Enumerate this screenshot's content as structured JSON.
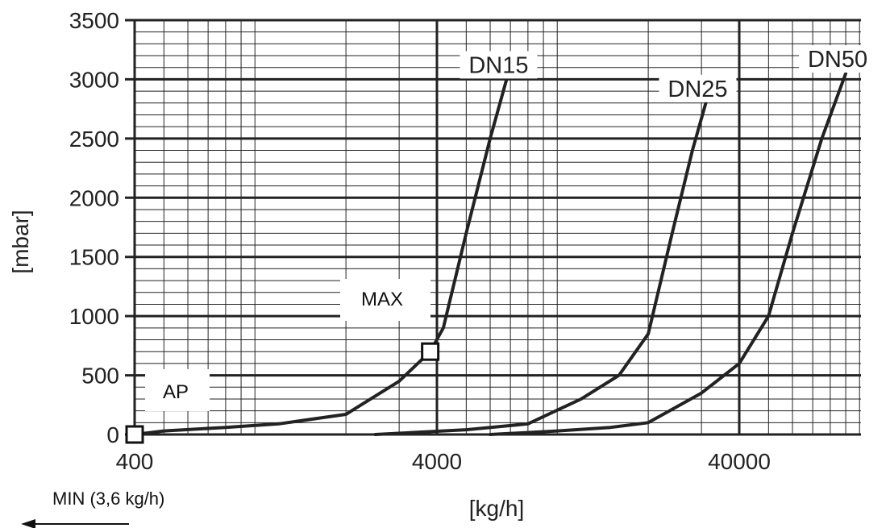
{
  "chart_data": {
    "type": "line",
    "xlabel": "[kg/h]",
    "ylabel": "[mbar]",
    "x_scale": "log",
    "xlim": [
      400,
      140000
    ],
    "ylim": [
      0,
      3500
    ],
    "x_ticks": [
      "400",
      "4000",
      "40000"
    ],
    "y_ticks": [
      "0",
      "500",
      "1000",
      "1500",
      "2000",
      "2500",
      "3000",
      "3500"
    ],
    "grid": true,
    "series": [
      {
        "name": "DN15",
        "x": [
          400,
          500,
          800,
          1200,
          2000,
          3000,
          3800,
          4200,
          5000,
          6000,
          6800
        ],
        "y": [
          0,
          30,
          60,
          90,
          170,
          450,
          700,
          900,
          1700,
          2500,
          3000
        ]
      },
      {
        "name": "DN25",
        "x": [
          2500,
          5000,
          8000,
          12000,
          16000,
          20000,
          24000,
          28000,
          31000
        ],
        "y": [
          0,
          40,
          90,
          300,
          500,
          850,
          1700,
          2400,
          2800
        ]
      },
      {
        "name": "DN50",
        "x": [
          6000,
          10000,
          15000,
          20000,
          30000,
          40000,
          50000,
          60000,
          75000,
          90000
        ],
        "y": [
          0,
          30,
          60,
          100,
          350,
          600,
          1000,
          1700,
          2500,
          3050
        ]
      }
    ],
    "annotations": {
      "max_label": "MAX",
      "ap_label": "AP",
      "min_label": "MIN (3,6 kg/h)",
      "max_point": {
        "x": 3800,
        "y": 700
      },
      "ap_point": {
        "x": 400,
        "y": 0
      }
    },
    "colors": {
      "line": "#222222",
      "grid": "#222222"
    }
  }
}
